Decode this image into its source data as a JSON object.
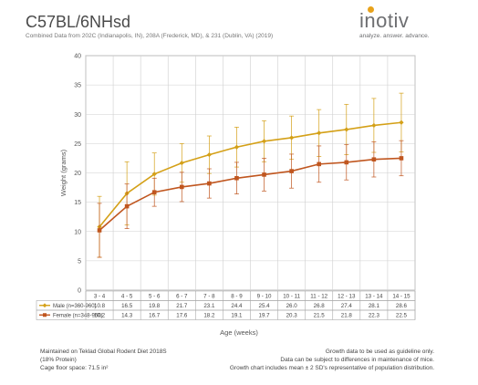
{
  "header": {
    "title": "C57BL/6NHsd",
    "subtitle": "Combined Data from 202C (Indianapolis, IN), 208A (Frederick, MD), & 231 (Dublin, VA) (2019)"
  },
  "logo": {
    "word": "inotiv",
    "tagline": "analyze. answer. advance."
  },
  "colors": {
    "male": "#d4a017",
    "female": "#c0561f",
    "grid": "#cfcfcf"
  },
  "chart_data": {
    "type": "line",
    "title": "C57BL/6NHsd",
    "xlabel": "Age (weeks)",
    "ylabel": "Weight (grams)",
    "ylim": [
      0,
      40
    ],
    "yticks": [
      0,
      5,
      10,
      15,
      20,
      25,
      30,
      35,
      40
    ],
    "grid": true,
    "categories": [
      "3 - 4",
      "4 - 5",
      "5 - 6",
      "6 - 7",
      "7 - 8",
      "8 - 9",
      "9 - 10",
      "10 - 11",
      "11 - 12",
      "12 - 13",
      "13 - 14",
      "14 - 15"
    ],
    "series": [
      {
        "name": "Male (n=360-960)",
        "values": [
          10.8,
          16.5,
          19.8,
          21.7,
          23.1,
          24.4,
          25.4,
          26.0,
          26.8,
          27.4,
          28.1,
          28.6
        ],
        "error": [
          5.2,
          5.4,
          3.6,
          3.3,
          3.2,
          3.4,
          3.5,
          3.7,
          4.0,
          4.3,
          4.6,
          5.0
        ]
      },
      {
        "name": "Female (n=348-960)",
        "values": [
          10.2,
          14.3,
          16.7,
          17.6,
          18.2,
          19.1,
          19.7,
          20.3,
          21.5,
          21.8,
          22.3,
          22.5
        ],
        "error": [
          4.6,
          3.8,
          2.4,
          2.5,
          2.5,
          2.7,
          2.8,
          2.9,
          3.1,
          3.0,
          3.0,
          3.0
        ]
      }
    ],
    "table_rows": [
      [
        "10.8",
        "16.5",
        "19.8",
        "21.7",
        "23.1",
        "24.4",
        "25.4",
        "26.0",
        "26.8",
        "27.4",
        "28.1",
        "28.6"
      ],
      [
        "10.2",
        "14.3",
        "16.7",
        "17.6",
        "18.2",
        "19.1",
        "19.7",
        "20.3",
        "21.5",
        "21.8",
        "22.3",
        "22.5"
      ]
    ]
  },
  "footer": {
    "left": [
      "Maintained on Teklad Global Rodent Diet 2018S",
      "(18% Protein)",
      "Cage floor space: 71.5 in²"
    ],
    "right": [
      "Growth data to be used as guideline only.",
      "Data can be subject to differences in maintenance of mice.",
      "Growth chart includes mean ± 2 SD's representative of population distribution."
    ]
  }
}
